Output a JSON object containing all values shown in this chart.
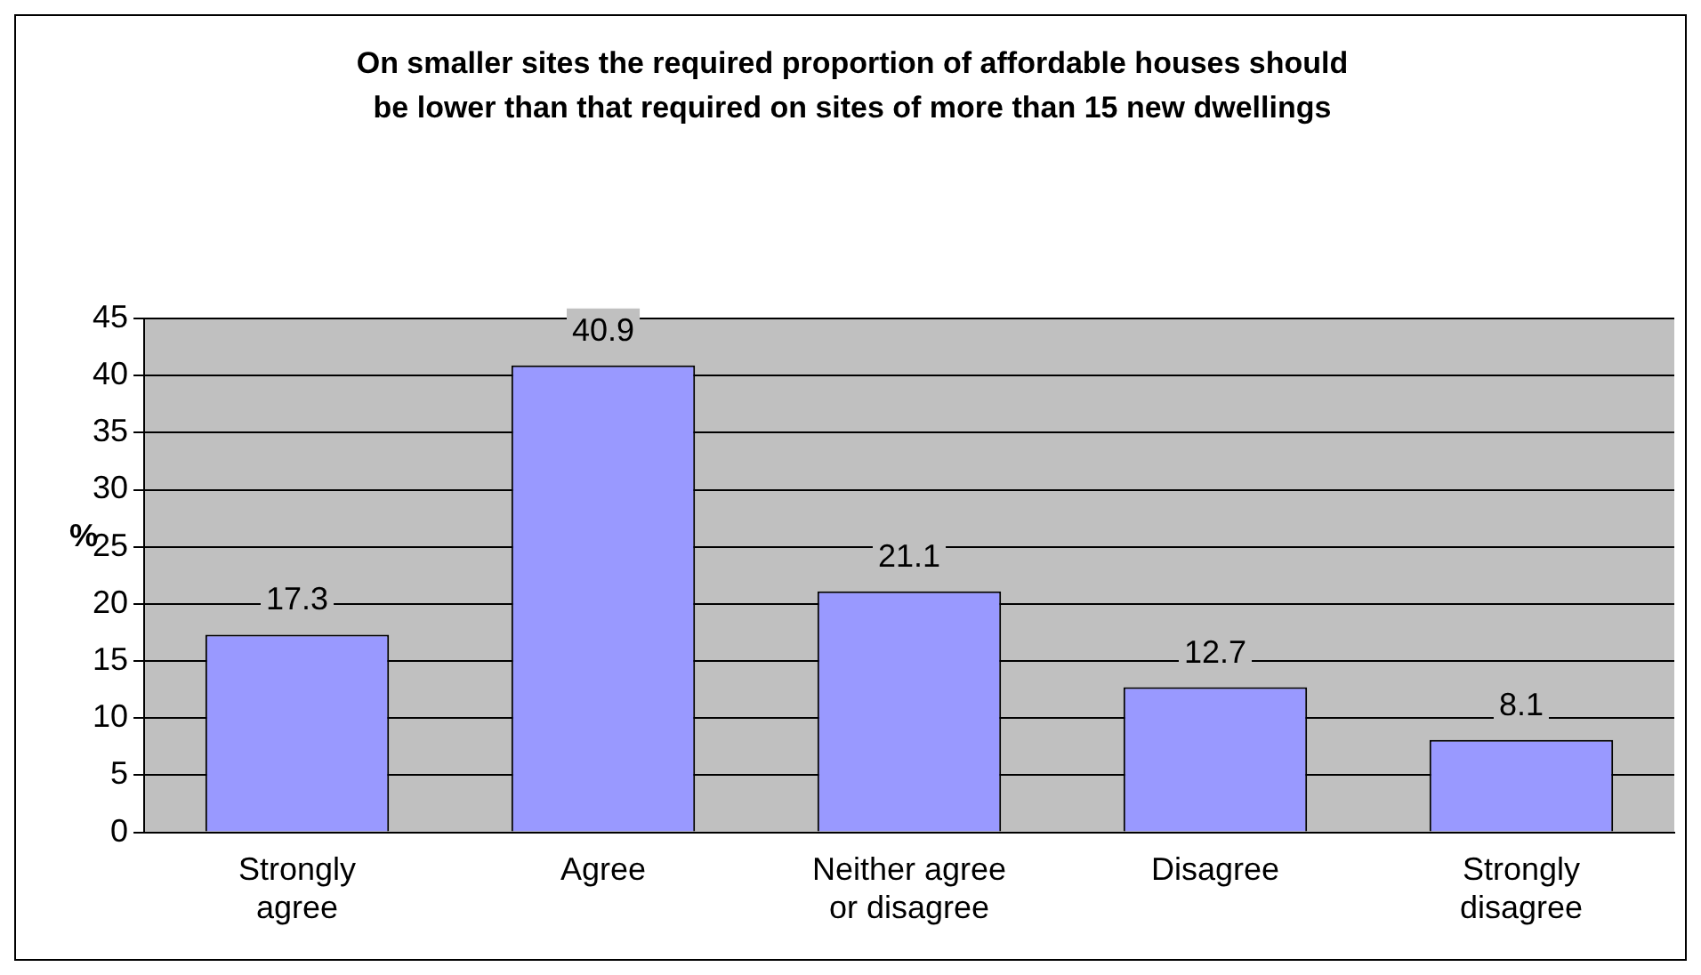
{
  "chart_data": {
    "type": "bar",
    "title": "On smaller sites the required proportion of affordable houses should be lower than that required on sites of more than 15 new dwellings",
    "ylabel": "%",
    "categories": [
      "Strongly agree",
      "Agree",
      "Neither agree or disagree",
      "Disagree",
      "Strongly disagree"
    ],
    "values": [
      17.3,
      40.9,
      21.1,
      12.7,
      8.1
    ],
    "color": "#9999ff",
    "ylim": [
      0,
      45
    ],
    "yticks": [
      0,
      5,
      10,
      15,
      20,
      25,
      30,
      35,
      40,
      45
    ],
    "grid": "y",
    "data_labels": true,
    "legend": false
  }
}
